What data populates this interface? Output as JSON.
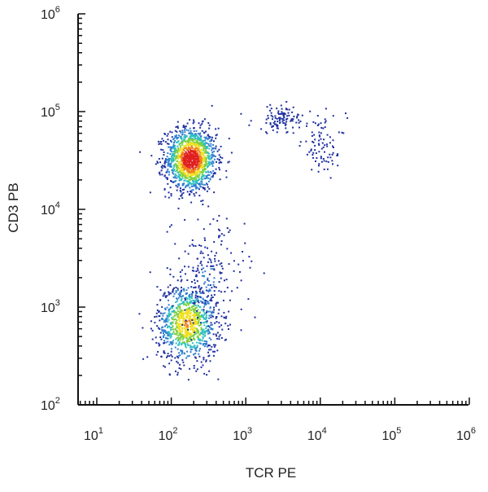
{
  "chart_data": {
    "type": "scatter",
    "style": "density-dot-plot",
    "xlabel": "TCR PE",
    "ylabel": "CD3 PB",
    "xscale": "log",
    "yscale": "log",
    "xlim": [
      5,
      1000000
    ],
    "ylim": [
      100,
      1000000
    ],
    "x_ticks": [
      {
        "base": "10",
        "exp": "1",
        "value": 10
      },
      {
        "base": "10",
        "exp": "2",
        "value": 100
      },
      {
        "base": "10",
        "exp": "3",
        "value": 1000
      },
      {
        "base": "10",
        "exp": "4",
        "value": 10000
      },
      {
        "base": "10",
        "exp": "5",
        "value": 100000
      },
      {
        "base": "10",
        "exp": "6",
        "value": 1000000
      }
    ],
    "y_ticks": [
      {
        "base": "10",
        "exp": "2",
        "value": 100
      },
      {
        "base": "10",
        "exp": "3",
        "value": 1000
      },
      {
        "base": "10",
        "exp": "4",
        "value": 10000
      },
      {
        "base": "10",
        "exp": "5",
        "value": 100000
      },
      {
        "base": "10",
        "exp": "6",
        "value": 1000000
      }
    ],
    "grid": false,
    "legend": "none",
    "density_colors": [
      "#1f2fa0",
      "#2f7fd0",
      "#2fc0c0",
      "#7fd040",
      "#f0e020",
      "#f08020",
      "#e02020"
    ],
    "populations": [
      {
        "center_x": 180,
        "center_y": 33000,
        "spread_x_decades": 0.17,
        "spread_y_decades": 0.16,
        "relative_density": 1.0
      },
      {
        "center_x": 160,
        "center_y": 700,
        "spread_x_decades": 0.2,
        "spread_y_decades": 0.2,
        "relative_density": 0.7
      },
      {
        "center_x": 300,
        "center_y": 2000,
        "spread_x_decades": 0.25,
        "spread_y_decades": 0.3,
        "relative_density": 0.15
      },
      {
        "center_x": 3000,
        "center_y": 85000,
        "spread_x_decades": 0.2,
        "spread_y_decades": 0.07,
        "relative_density": 0.08
      },
      {
        "center_x": 11000,
        "center_y": 45000,
        "spread_x_decades": 0.15,
        "spread_y_decades": 0.15,
        "relative_density": 0.06
      }
    ]
  }
}
